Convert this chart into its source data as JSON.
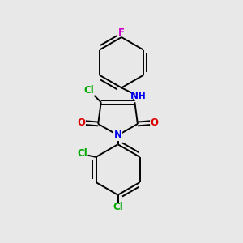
{
  "background_color": "#e8e8e8",
  "bond_color": "#000000",
  "atom_colors": {
    "F": "#cc00cc",
    "Cl": "#00aa00",
    "N": "#0000ee",
    "O": "#dd0000",
    "C": "#000000",
    "H": "#0000ee"
  },
  "figsize": [
    3.0,
    3.0
  ],
  "dpi": 100,
  "lw": 1.4
}
